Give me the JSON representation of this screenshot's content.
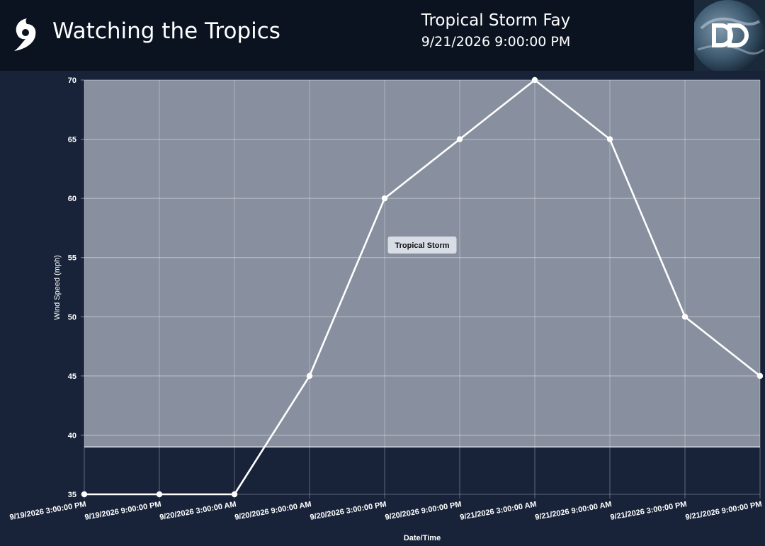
{
  "header": {
    "app_title": "Watching the Tropics",
    "storm_name": "Tropical Storm Fay",
    "storm_time": "9/21/2026 9:00:00 PM",
    "icon": "hurricane-icon",
    "logo": "dd-logo"
  },
  "colors": {
    "page_background": "#182339",
    "header_background": "#0b1321",
    "band_fill": "#8890a0",
    "line": "#ffffff",
    "label_bg": "#d8dde6"
  },
  "chart_data": {
    "type": "line",
    "title": "",
    "xlabel": "Date/Time",
    "ylabel": "Wind Speed (mph)",
    "ylim": [
      35,
      70
    ],
    "yticks": [
      35,
      40,
      45,
      50,
      55,
      60,
      65,
      70
    ],
    "grid": true,
    "categories": [
      "9/19/2026 3:00:00 PM",
      "9/19/2026 9:00:00 PM",
      "9/20/2026 3:00:00 AM",
      "9/20/2026 9:00:00 AM",
      "9/20/2026 3:00:00 PM",
      "9/20/2026 9:00:00 PM",
      "9/21/2026 3:00:00 AM",
      "9/21/2026 9:00:00 AM",
      "9/21/2026 3:00:00 PM",
      "9/21/2026 9:00:00 PM"
    ],
    "series": [
      {
        "values": [
          35,
          35,
          35,
          45,
          60,
          65,
          70,
          65,
          50,
          45
        ]
      }
    ],
    "bands": [
      {
        "label": "Tropical Storm",
        "from": 39,
        "to": 70
      }
    ]
  }
}
